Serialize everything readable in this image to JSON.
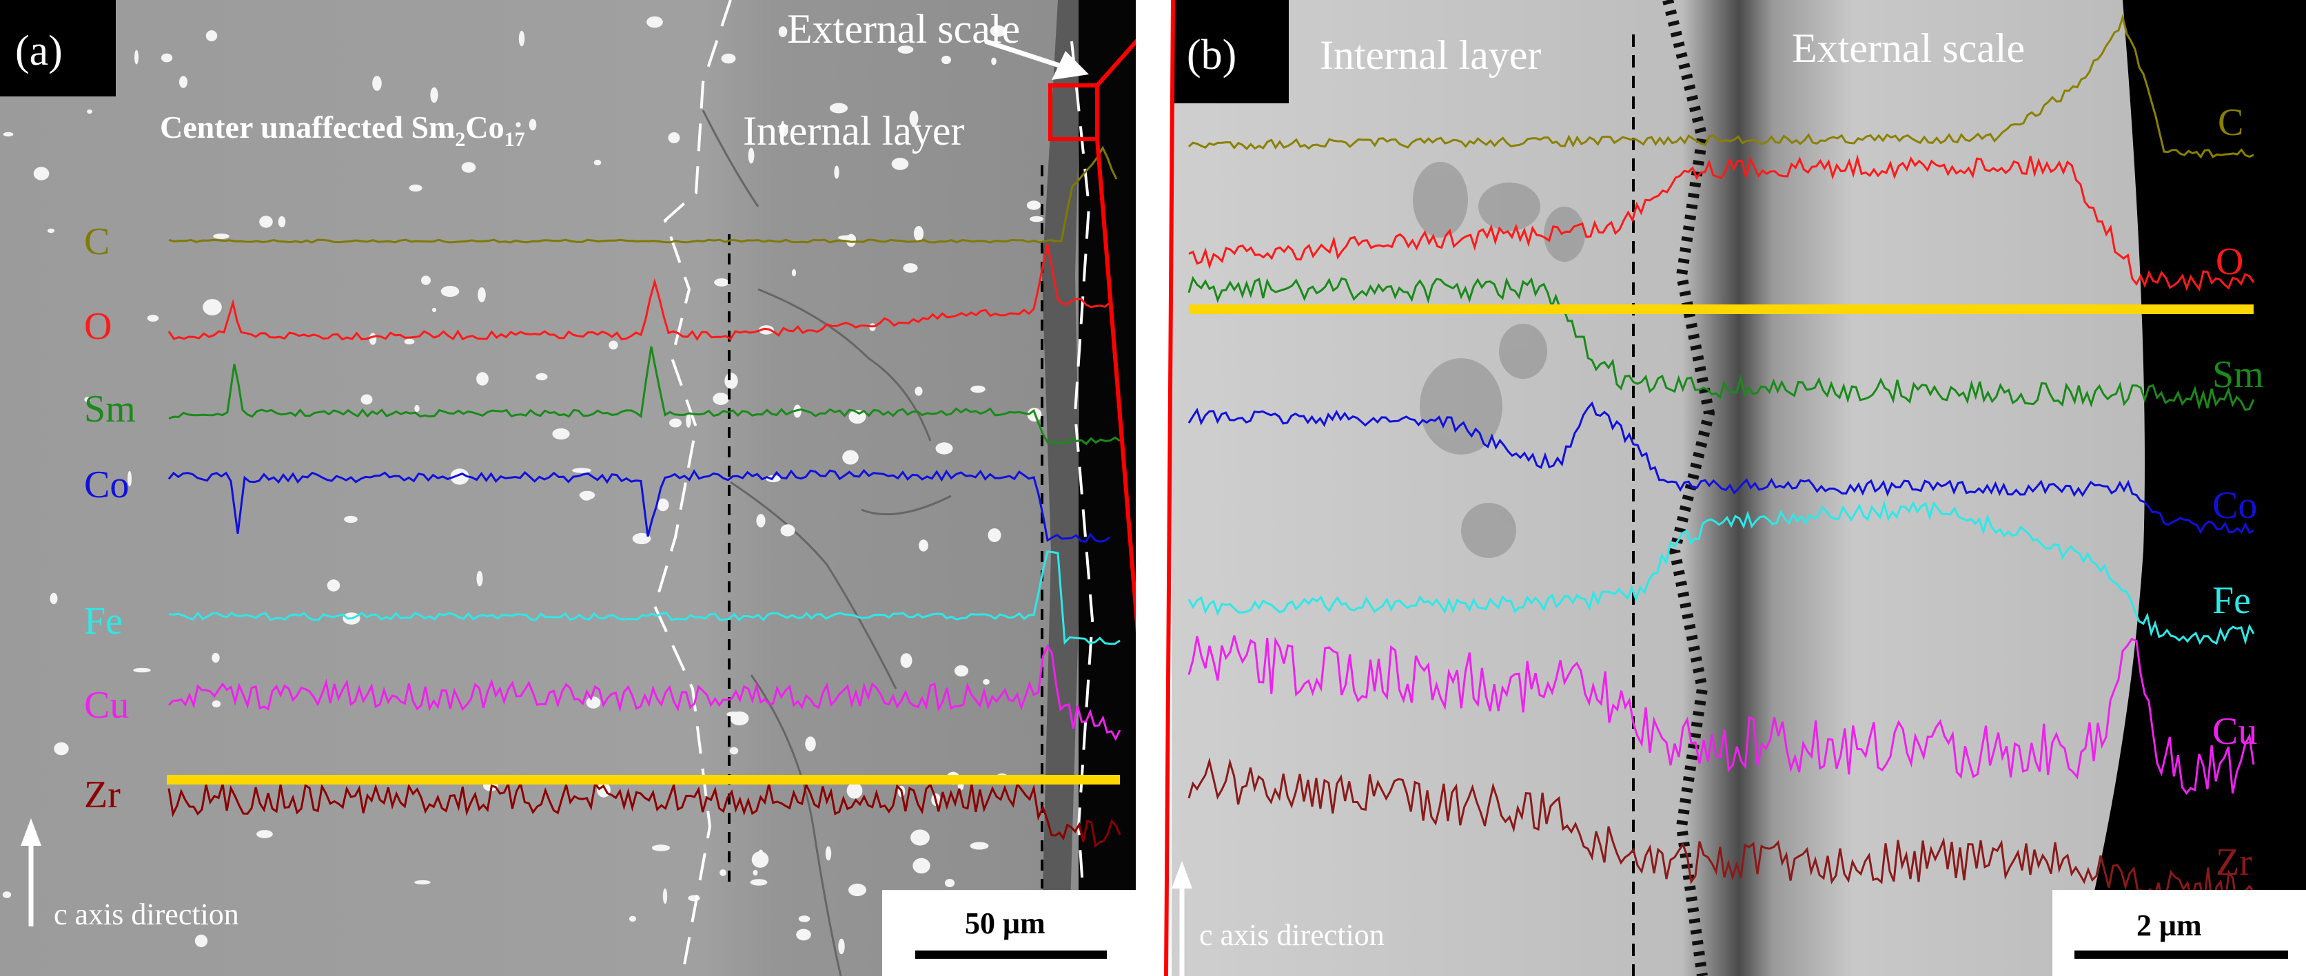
{
  "figure": {
    "panel_a": {
      "tag": "(a)",
      "label_external_scale": "External scale",
      "label_internal_layer": "Internal layer",
      "label_center_prefix": "Center unaffected Sm",
      "label_center_sub1": "2",
      "label_center_mid": "Co",
      "label_center_sub2": "17",
      "scale_bar": "50 μm",
      "direction": "c axis direction",
      "elements": [
        {
          "symbol": "C",
          "color": "#7f7a00"
        },
        {
          "symbol": "O",
          "color": "#ff1a1a"
        },
        {
          "symbol": "Sm",
          "color": "#1a8a1a"
        },
        {
          "symbol": "Co",
          "color": "#1010dd"
        },
        {
          "symbol": "Fe",
          "color": "#2ee8e8"
        },
        {
          "symbol": "Cu",
          "color": "#ee22ee"
        },
        {
          "symbol": "Zr",
          "color": "#8b0000"
        }
      ]
    },
    "panel_b": {
      "tag": "(b)",
      "label_internal_layer": "Internal layer",
      "label_external_scale": "External scale",
      "scale_bar": "2 μm",
      "direction": "c axis direction",
      "elements": [
        {
          "symbol": "C",
          "color": "#8a8000"
        },
        {
          "symbol": "O",
          "color": "#ff1a1a"
        },
        {
          "symbol": "Sm",
          "color": "#1a8a1a"
        },
        {
          "symbol": "Co",
          "color": "#1010dd"
        },
        {
          "symbol": "Fe",
          "color": "#2ee8e8"
        },
        {
          "symbol": "Cu",
          "color": "#ee22ee"
        },
        {
          "symbol": "Zr",
          "color": "#8b1a1a"
        }
      ]
    },
    "highlight_color": "#ffd700",
    "zoom_box_color": "#ff0000"
  }
}
